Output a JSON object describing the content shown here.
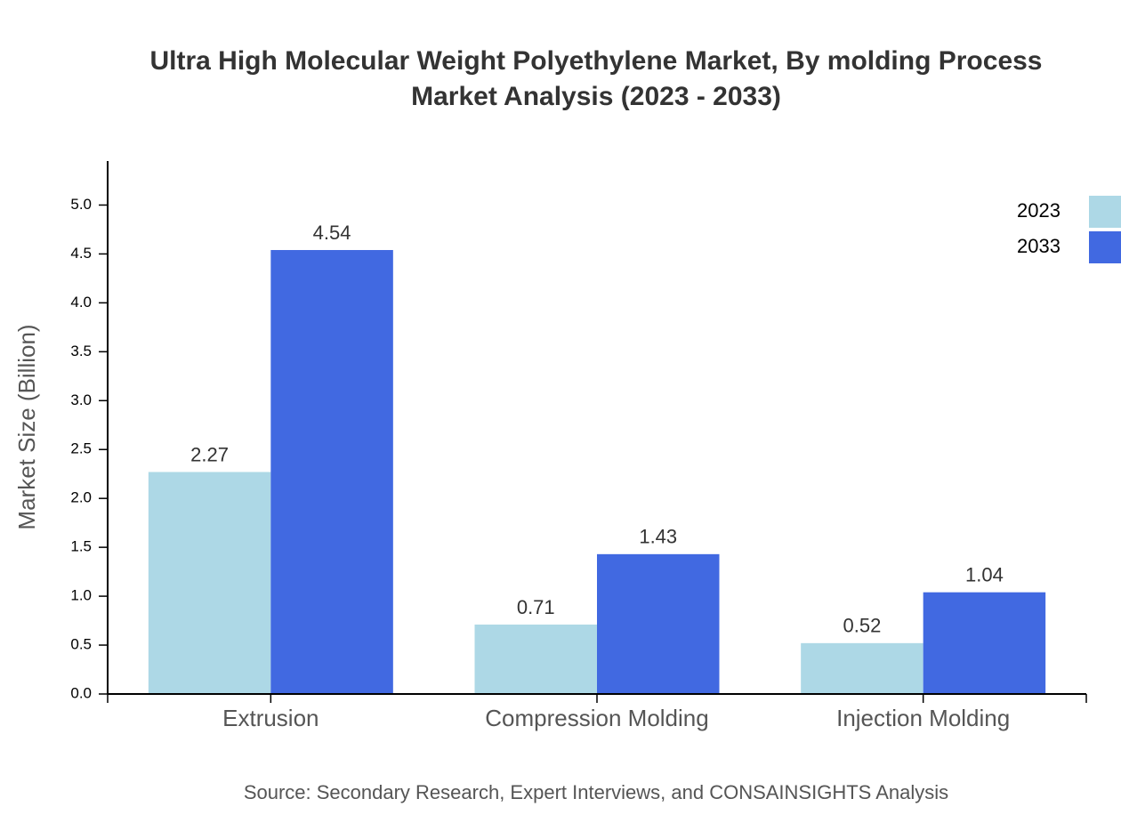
{
  "chart_data": {
    "type": "bar",
    "title": [
      "Ultra High Molecular Weight Polyethylene Market, By molding Process",
      "Market Analysis (2023 - 2033)"
    ],
    "y_label": "Market Size (Billion)",
    "source": "Source: Secondary Research, Expert Interviews, and CONSAINSIGHTS Analysis",
    "categories": [
      "Extrusion",
      "Compression Molding",
      "Injection Molding"
    ],
    "series": [
      {
        "name": "2023",
        "color": "#add8e6",
        "values": [
          2.27,
          0.71,
          0.52
        ]
      },
      {
        "name": "2033",
        "color": "#4169e1",
        "values": [
          4.54,
          1.43,
          1.04
        ]
      }
    ],
    "ylim": [
      0,
      5.45
    ],
    "yticks": [
      {
        "value": 0,
        "label": "0.0"
      },
      0.5,
      {
        "value": 1,
        "label": "1.0"
      },
      1.5,
      {
        "value": 2,
        "label": "2.0"
      },
      2.5,
      {
        "value": 3,
        "label": "3.0"
      },
      3.5,
      {
        "value": 4,
        "label": "4.0"
      },
      4.5,
      {
        "value": 5,
        "label": "5.0"
      }
    ],
    "grid": false,
    "legend": "top-right"
  }
}
